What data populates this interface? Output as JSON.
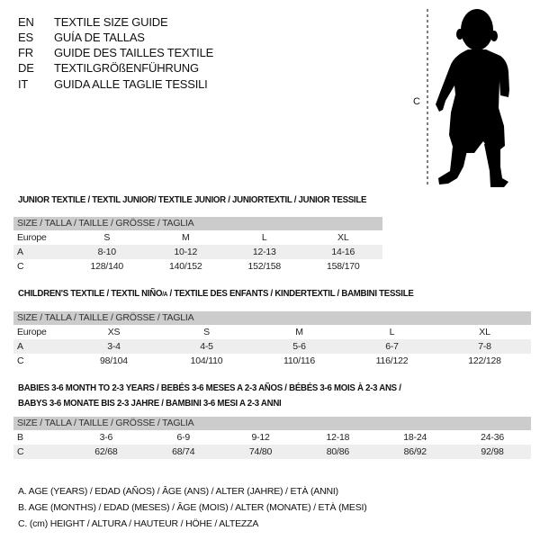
{
  "languages": [
    {
      "code": "EN",
      "name": "TEXTILE SIZE GUIDE"
    },
    {
      "code": "ES",
      "name": "GUÍA DE TALLAS"
    },
    {
      "code": "FR",
      "name": "GUIDE DES TAILLES TEXTILE"
    },
    {
      "code": "DE",
      "name": "TEXTILGRÖßENFÜHRUNG"
    },
    {
      "code": "IT",
      "name": "GUIDA ALLE TAGLIE TESSILI"
    }
  ],
  "figure": {
    "measure_label": "C",
    "icon": "child-silhouette"
  },
  "junior": {
    "title": "JUNIOR TEXTILE / TEXTIL JUNIOR/ TEXTILE JUNIOR / JUNIORTEXTIL / JUNIOR TESSILE",
    "header": "SIZE / TALLA / TAILLE / GRÖSSE / TAGLIA",
    "rows": [
      {
        "label": "Europe",
        "cells": [
          "S",
          "M",
          "L",
          "XL"
        ]
      },
      {
        "label": "A",
        "cells": [
          "8-10",
          "10-12",
          "12-13",
          "14-16"
        ]
      },
      {
        "label": "C",
        "cells": [
          "128/140",
          "140/152",
          "152/158",
          "158/170"
        ]
      }
    ]
  },
  "children": {
    "title_main": "CHILDREN'S TEXTILE / TEXTIL NIÑO",
    "title_sub": "/A",
    "title_rest": " / TEXTILE DES ENFANTS / KINDERTEXTIL / BAMBINI TESSILE",
    "header": "SIZE / TALLA / TAILLE / GRÖSSE / TAGLIA",
    "rows": [
      {
        "label": "Europe",
        "cells": [
          "XS",
          "S",
          "M",
          "L",
          "XL"
        ]
      },
      {
        "label": "A",
        "cells": [
          "3-4",
          "4-5",
          "5-6",
          "6-7",
          "7-8"
        ]
      },
      {
        "label": "C",
        "cells": [
          "98/104",
          "104/110",
          "110/116",
          "116/122",
          "122/128"
        ]
      }
    ]
  },
  "babies": {
    "title_line1": "BABIES 3-6 MONTH TO 2-3 YEARS / BEBÉS 3-6 MESES A 2-3 AÑOS / BÉBÉS 3-6 MOIS À 2-3 ANS /",
    "title_line2": "BABYS 3-6 MONATE BIS 2-3 JAHRE / BAMBINI 3-6 MESI A 2-3 ANNI",
    "header": "SIZE / TALLA / TAILLE / GRÖSSE / TAGLIA",
    "rows": [
      {
        "label": "B",
        "cells": [
          "3-6",
          "6-9",
          "9-12",
          "12-18",
          "18-24",
          "24-36"
        ]
      },
      {
        "label": "C",
        "cells": [
          "62/68",
          "68/74",
          "74/80",
          "80/86",
          "86/92",
          "92/98"
        ]
      }
    ]
  },
  "legend": [
    "A. AGE (YEARS) / EDAD (AÑOS) / ÂGE (ANS) / ALTER (JAHRE) / ETÀ (ANNI)",
    "B. AGE (MONTHS) / EDAD (MESES) / ÂGE (MOIS) / ALTER (MONATE) / ETÀ (MESI)",
    "C. (cm) HEIGHT / ALTURA / HAUTEUR / HÖHE / ALTEZZA"
  ]
}
